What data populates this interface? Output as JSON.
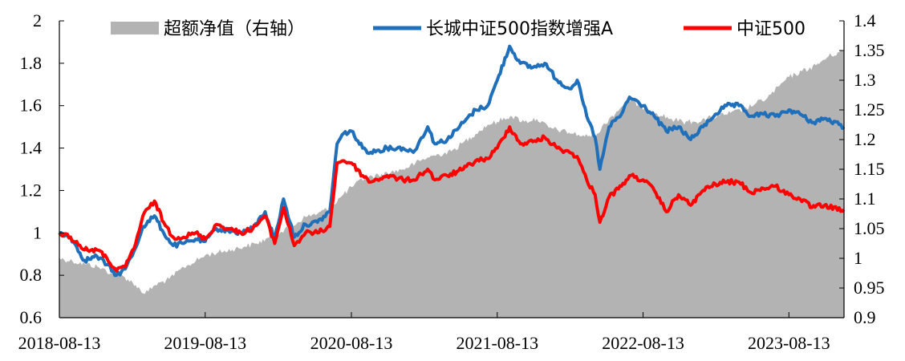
{
  "chart_data": {
    "type": "line",
    "title": "",
    "xlabel": "",
    "ylabel_left": "",
    "ylabel_right": "",
    "x_tick_labels": [
      "2018-08-13",
      "2019-08-13",
      "2020-08-13",
      "2021-08-13",
      "2022-08-13",
      "2023-08-13"
    ],
    "x_tick_dates": [
      "2018-08-13",
      "2019-08-13",
      "2020-08-13",
      "2021-08-13",
      "2022-08-13",
      "2023-08-13"
    ],
    "x_range": [
      "2018-08-13",
      "2023-12-29"
    ],
    "y_left": {
      "min": 0.6,
      "max": 2.0,
      "ticks": [
        "0.6",
        "0.8",
        "1",
        "1.2",
        "1.4",
        "1.6",
        "1.8",
        "2"
      ]
    },
    "y_right": {
      "min": 0.9,
      "max": 1.4,
      "ticks": [
        "0.9",
        "0.95",
        "1",
        "1.05",
        "1.1",
        "1.15",
        "1.2",
        "1.25",
        "1.3",
        "1.35",
        "1.4"
      ]
    },
    "grid": false,
    "legend_position": "top",
    "series": [
      {
        "name": "超额净值（右轴）",
        "kind": "area",
        "axis": "right",
        "color": "#b3b3b3",
        "points": [
          [
            "2018-08-13",
            1.0
          ],
          [
            "2018-09-15",
            0.995
          ],
          [
            "2018-10-20",
            0.99
          ],
          [
            "2018-11-20",
            0.985
          ],
          [
            "2018-12-20",
            0.975
          ],
          [
            "2019-01-20",
            0.97
          ],
          [
            "2019-02-20",
            0.955
          ],
          [
            "2019-03-15",
            0.94
          ],
          [
            "2019-04-10",
            0.955
          ],
          [
            "2019-05-15",
            0.965
          ],
          [
            "2019-06-20",
            0.985
          ],
          [
            "2019-07-20",
            0.995
          ],
          [
            "2019-08-13",
            1.005
          ],
          [
            "2019-09-15",
            1.01
          ],
          [
            "2019-10-20",
            1.015
          ],
          [
            "2019-11-20",
            1.02
          ],
          [
            "2019-12-20",
            1.025
          ],
          [
            "2020-01-20",
            1.035
          ],
          [
            "2020-02-20",
            1.045
          ],
          [
            "2020-03-20",
            1.055
          ],
          [
            "2020-04-20",
            1.07
          ],
          [
            "2020-05-20",
            1.075
          ],
          [
            "2020-06-20",
            1.085
          ],
          [
            "2020-07-20",
            1.105
          ],
          [
            "2020-08-13",
            1.12
          ],
          [
            "2020-09-15",
            1.135
          ],
          [
            "2020-10-20",
            1.14
          ],
          [
            "2020-11-20",
            1.145
          ],
          [
            "2020-12-20",
            1.15
          ],
          [
            "2021-01-20",
            1.16
          ],
          [
            "2021-02-20",
            1.17
          ],
          [
            "2021-03-20",
            1.175
          ],
          [
            "2021-04-20",
            1.18
          ],
          [
            "2021-05-20",
            1.195
          ],
          [
            "2021-06-20",
            1.21
          ],
          [
            "2021-07-20",
            1.225
          ],
          [
            "2021-08-13",
            1.23
          ],
          [
            "2021-09-15",
            1.24
          ],
          [
            "2021-10-20",
            1.23
          ],
          [
            "2021-11-20",
            1.235
          ],
          [
            "2021-12-20",
            1.22
          ],
          [
            "2022-01-20",
            1.215
          ],
          [
            "2022-02-20",
            1.21
          ],
          [
            "2022-03-20",
            1.205
          ],
          [
            "2022-04-20",
            1.21
          ],
          [
            "2022-05-20",
            1.235
          ],
          [
            "2022-06-20",
            1.255
          ],
          [
            "2022-07-20",
            1.265
          ],
          [
            "2022-08-13",
            1.25
          ],
          [
            "2022-09-15",
            1.245
          ],
          [
            "2022-10-20",
            1.235
          ],
          [
            "2022-11-20",
            1.23
          ],
          [
            "2022-12-20",
            1.23
          ],
          [
            "2023-01-20",
            1.235
          ],
          [
            "2023-02-20",
            1.24
          ],
          [
            "2023-03-20",
            1.245
          ],
          [
            "2023-04-20",
            1.25
          ],
          [
            "2023-05-20",
            1.26
          ],
          [
            "2023-06-20",
            1.27
          ],
          [
            "2023-07-20",
            1.29
          ],
          [
            "2023-08-13",
            1.305
          ],
          [
            "2023-09-15",
            1.315
          ],
          [
            "2023-10-20",
            1.325
          ],
          [
            "2023-11-20",
            1.34
          ],
          [
            "2023-12-29",
            1.35
          ]
        ]
      },
      {
        "name": "长城中证500指数增强A",
        "kind": "line",
        "axis": "left",
        "color": "#1f6fba",
        "points": [
          [
            "2018-08-13",
            1.0
          ],
          [
            "2018-09-10",
            0.98
          ],
          [
            "2018-10-15",
            0.87
          ],
          [
            "2018-11-15",
            0.89
          ],
          [
            "2018-12-10",
            0.85
          ],
          [
            "2019-01-03",
            0.8
          ],
          [
            "2019-01-25",
            0.83
          ],
          [
            "2019-02-20",
            0.93
          ],
          [
            "2019-03-10",
            1.03
          ],
          [
            "2019-04-08",
            1.08
          ],
          [
            "2019-05-01",
            1.0
          ],
          [
            "2019-05-25",
            0.94
          ],
          [
            "2019-06-20",
            0.95
          ],
          [
            "2019-07-20",
            0.97
          ],
          [
            "2019-08-13",
            0.96
          ],
          [
            "2019-09-10",
            1.02
          ],
          [
            "2019-10-10",
            1.01
          ],
          [
            "2019-11-10",
            1.0
          ],
          [
            "2019-12-10",
            1.02
          ],
          [
            "2020-01-10",
            1.1
          ],
          [
            "2020-02-03",
            0.97
          ],
          [
            "2020-02-25",
            1.16
          ],
          [
            "2020-03-23",
            0.98
          ],
          [
            "2020-04-20",
            1.04
          ],
          [
            "2020-05-20",
            1.05
          ],
          [
            "2020-06-20",
            1.1
          ],
          [
            "2020-07-08",
            1.42
          ],
          [
            "2020-07-25",
            1.47
          ],
          [
            "2020-08-13",
            1.48
          ],
          [
            "2020-09-10",
            1.4
          ],
          [
            "2020-09-30",
            1.38
          ],
          [
            "2020-11-10",
            1.4
          ],
          [
            "2020-12-20",
            1.4
          ],
          [
            "2021-01-15",
            1.38
          ],
          [
            "2021-02-20",
            1.5
          ],
          [
            "2021-03-10",
            1.42
          ],
          [
            "2021-04-10",
            1.44
          ],
          [
            "2021-05-20",
            1.52
          ],
          [
            "2021-06-20",
            1.58
          ],
          [
            "2021-07-20",
            1.6
          ],
          [
            "2021-08-13",
            1.72
          ],
          [
            "2021-09-13",
            1.88
          ],
          [
            "2021-10-10",
            1.8
          ],
          [
            "2021-11-10",
            1.78
          ],
          [
            "2021-12-10",
            1.8
          ],
          [
            "2022-01-10",
            1.72
          ],
          [
            "2022-02-10",
            1.68
          ],
          [
            "2022-03-01",
            1.72
          ],
          [
            "2022-03-25",
            1.55
          ],
          [
            "2022-04-15",
            1.45
          ],
          [
            "2022-04-27",
            1.3
          ],
          [
            "2022-05-20",
            1.5
          ],
          [
            "2022-06-20",
            1.56
          ],
          [
            "2022-07-10",
            1.64
          ],
          [
            "2022-08-13",
            1.6
          ],
          [
            "2022-09-10",
            1.55
          ],
          [
            "2022-10-10",
            1.48
          ],
          [
            "2022-11-10",
            1.5
          ],
          [
            "2022-12-10",
            1.44
          ],
          [
            "2023-01-10",
            1.5
          ],
          [
            "2023-02-10",
            1.56
          ],
          [
            "2023-03-10",
            1.6
          ],
          [
            "2023-04-10",
            1.6
          ],
          [
            "2023-05-10",
            1.55
          ],
          [
            "2023-06-10",
            1.56
          ],
          [
            "2023-07-10",
            1.55
          ],
          [
            "2023-08-13",
            1.58
          ],
          [
            "2023-09-10",
            1.56
          ],
          [
            "2023-10-10",
            1.52
          ],
          [
            "2023-11-10",
            1.54
          ],
          [
            "2023-12-29",
            1.5
          ]
        ]
      },
      {
        "name": "中证500",
        "kind": "line",
        "axis": "left",
        "color": "#ff0000",
        "points": [
          [
            "2018-08-13",
            1.0
          ],
          [
            "2018-09-10",
            0.98
          ],
          [
            "2018-10-15",
            0.92
          ],
          [
            "2018-11-15",
            0.92
          ],
          [
            "2018-12-10",
            0.88
          ],
          [
            "2019-01-03",
            0.82
          ],
          [
            "2019-01-25",
            0.84
          ],
          [
            "2019-02-20",
            0.95
          ],
          [
            "2019-03-10",
            1.08
          ],
          [
            "2019-04-08",
            1.15
          ],
          [
            "2019-05-01",
            1.05
          ],
          [
            "2019-05-25",
            0.98
          ],
          [
            "2019-06-20",
            0.98
          ],
          [
            "2019-07-20",
            1.0
          ],
          [
            "2019-08-13",
            0.97
          ],
          [
            "2019-09-10",
            1.04
          ],
          [
            "2019-10-10",
            1.02
          ],
          [
            "2019-11-10",
            1.0
          ],
          [
            "2019-12-10",
            1.02
          ],
          [
            "2020-01-10",
            1.08
          ],
          [
            "2020-02-03",
            0.95
          ],
          [
            "2020-02-25",
            1.12
          ],
          [
            "2020-03-23",
            0.94
          ],
          [
            "2020-04-20",
            1.0
          ],
          [
            "2020-05-20",
            1.0
          ],
          [
            "2020-06-20",
            1.03
          ],
          [
            "2020-07-08",
            1.33
          ],
          [
            "2020-07-25",
            1.34
          ],
          [
            "2020-08-13",
            1.33
          ],
          [
            "2020-09-10",
            1.27
          ],
          [
            "2020-09-30",
            1.24
          ],
          [
            "2020-11-10",
            1.27
          ],
          [
            "2020-12-20",
            1.25
          ],
          [
            "2021-01-15",
            1.25
          ],
          [
            "2021-02-20",
            1.3
          ],
          [
            "2021-03-10",
            1.25
          ],
          [
            "2021-04-10",
            1.27
          ],
          [
            "2021-05-20",
            1.3
          ],
          [
            "2021-06-20",
            1.34
          ],
          [
            "2021-07-20",
            1.35
          ],
          [
            "2021-08-13",
            1.4
          ],
          [
            "2021-09-13",
            1.5
          ],
          [
            "2021-10-10",
            1.42
          ],
          [
            "2021-11-10",
            1.43
          ],
          [
            "2021-12-10",
            1.45
          ],
          [
            "2022-01-10",
            1.4
          ],
          [
            "2022-02-10",
            1.38
          ],
          [
            "2022-03-01",
            1.36
          ],
          [
            "2022-03-25",
            1.25
          ],
          [
            "2022-04-15",
            1.18
          ],
          [
            "2022-04-27",
            1.05
          ],
          [
            "2022-05-20",
            1.17
          ],
          [
            "2022-06-20",
            1.22
          ],
          [
            "2022-07-10",
            1.27
          ],
          [
            "2022-08-13",
            1.25
          ],
          [
            "2022-09-10",
            1.2
          ],
          [
            "2022-10-10",
            1.1
          ],
          [
            "2022-11-10",
            1.18
          ],
          [
            "2022-12-10",
            1.13
          ],
          [
            "2023-01-10",
            1.2
          ],
          [
            "2023-02-10",
            1.23
          ],
          [
            "2023-03-10",
            1.24
          ],
          [
            "2023-04-10",
            1.24
          ],
          [
            "2023-05-10",
            1.19
          ],
          [
            "2023-06-10",
            1.21
          ],
          [
            "2023-07-10",
            1.22
          ],
          [
            "2023-08-13",
            1.18
          ],
          [
            "2023-09-10",
            1.16
          ],
          [
            "2023-10-10",
            1.12
          ],
          [
            "2023-11-10",
            1.13
          ],
          [
            "2023-12-29",
            1.1
          ]
        ]
      }
    ]
  }
}
